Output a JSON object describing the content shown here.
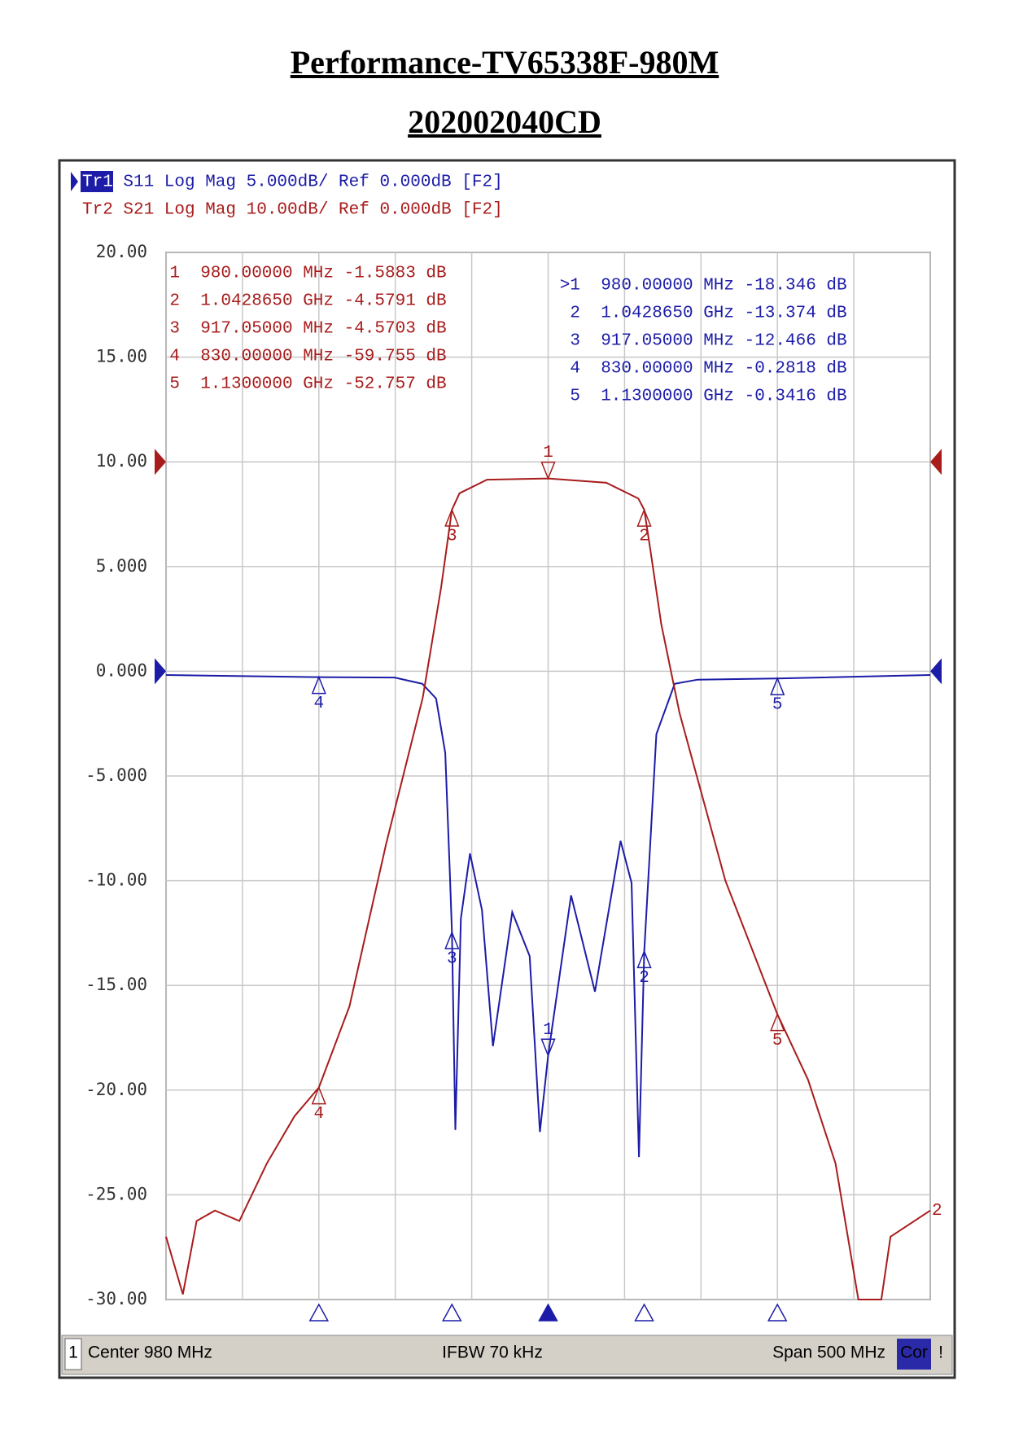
{
  "title": "Performance-TV65338F-980M",
  "subtitle": "202002040CD",
  "chart_data": {
    "type": "line",
    "xlim": [
      730,
      1230
    ],
    "xticks": [
      730,
      780,
      830,
      880,
      930,
      980,
      1030,
      1080,
      1130,
      1180,
      1230
    ],
    "ylim": [
      -30,
      20
    ],
    "yticks": [
      {
        "value": 20,
        "label": "20.00"
      },
      {
        "value": 15,
        "label": "15.00"
      },
      {
        "value": 10,
        "label": "10.00"
      },
      {
        "value": 5,
        "label": "5.000"
      },
      {
        "value": 0,
        "label": "0.000"
      },
      {
        "value": -5,
        "label": "-5.000"
      },
      {
        "value": -10,
        "label": "-10.00"
      },
      {
        "value": -15,
        "label": "-15.00"
      },
      {
        "value": -20,
        "label": "-20.00"
      },
      {
        "value": -25,
        "label": "-25.00"
      },
      {
        "value": -30,
        "label": "-30.00"
      }
    ],
    "y2lim": [
      -80,
      20
    ],
    "grid": true,
    "marker_labels": [
      "1",
      "2",
      "3",
      "4",
      "5"
    ],
    "series": [
      {
        "trace": "Tr1",
        "name": "S11",
        "setting": "Log Mag 5.000dB/ Ref 0.000dB [F2]",
        "ref": 0,
        "color": "#1c1ca8",
        "x": [
          730,
          830,
          879.6,
          897.7,
          906.7,
          912.7,
          915.7,
          917.05,
          919.3,
          922.9,
          928.9,
          936.7,
          943.9,
          956.5,
          967.9,
          974.6,
          980,
          995,
          1010.6,
          1027.4,
          1034.6,
          1039.4,
          1042.865,
          1050.8,
          1062.8,
          1077.8,
          1130,
          1230
        ],
        "values": [
          -0.18,
          -0.2818,
          -0.3,
          -0.6,
          -1.3,
          -3.9,
          -9.6,
          -12.466,
          -21.9,
          -11.8,
          -8.7,
          -11.4,
          -17.9,
          -11.5,
          -13.6,
          -22,
          -18.346,
          -10.7,
          -15.3,
          -8.1,
          -10.1,
          -23.2,
          -13.374,
          -3,
          -0.6,
          -0.4,
          -0.3416,
          -0.18
        ],
        "list_ids": [
          ">1",
          "2",
          "3",
          "4",
          "5"
        ],
        "markers": [
          {
            "x": 980,
            "value": -18.346,
            "stimulus": "980.00000 MHz",
            "response": "-18.346 dB"
          },
          {
            "x": 1042.865,
            "value": -13.374,
            "stimulus": "1.0428650 GHz",
            "response": "-13.374 dB"
          },
          {
            "x": 917.05,
            "value": -12.466,
            "stimulus": "917.05000 MHz",
            "response": "-12.466 dB"
          },
          {
            "x": 830,
            "value": -0.2818,
            "stimulus": "830.00000 MHz",
            "response": "-0.2818 dB"
          },
          {
            "x": 1130,
            "value": -0.3416,
            "stimulus": "1.1300000 GHz",
            "response": "-0.3416 dB"
          }
        ]
      },
      {
        "trace": "Tr2",
        "name": "S21",
        "setting": "Log Mag 10.00dB/ Ref 0.000dB [F2]",
        "ref": 0,
        "color": "#a81c1c",
        "axis": "y2",
        "end_label": "2",
        "x": [
          730,
          741,
          750,
          762,
          778,
          796,
          814,
          830,
          850,
          874,
          898,
          910,
          917.05,
          922,
          940,
          980,
          1018,
          1039,
          1042.865,
          1047,
          1054,
          1066,
          1096,
          1130,
          1150,
          1168,
          1183,
          1198,
          1204,
          1230
        ],
        "values": [
          -74,
          -79.5,
          -72.5,
          -71.5,
          -72.5,
          -67,
          -62.5,
          -59.755,
          -52,
          -36.5,
          -22.5,
          -12,
          -4.5703,
          -3,
          -1.7,
          -1.5883,
          -2,
          -3.5,
          -4.5791,
          -8.5,
          -15.5,
          -24,
          -40,
          -52.757,
          -59,
          -67,
          -80,
          -80,
          -74,
          -71.5
        ],
        "list_ids": [
          "1",
          "2",
          "3",
          "4",
          "5"
        ],
        "markers": [
          {
            "x": 980,
            "value": -1.5883,
            "stimulus": "980.00000 MHz",
            "response": "-1.5883 dB"
          },
          {
            "x": 1042.865,
            "value": -4.5791,
            "stimulus": "1.0428650 GHz",
            "response": "-4.5791 dB"
          },
          {
            "x": 917.05,
            "value": -4.5703,
            "stimulus": "917.05000 MHz",
            "response": "-4.5703 dB"
          },
          {
            "x": 830,
            "value": -59.755,
            "stimulus": "830.00000 MHz",
            "response": "-59.755 dB"
          },
          {
            "x": 1130,
            "value": -52.757,
            "stimulus": "1.1300000 GHz",
            "response": "-52.757 dB"
          }
        ]
      }
    ]
  },
  "status": {
    "channel": "1",
    "center": "Center 980 MHz",
    "ifbw": "IFBW 70 kHz",
    "span": "Span 500 MHz",
    "cor": "Cor",
    "flag": "!"
  }
}
